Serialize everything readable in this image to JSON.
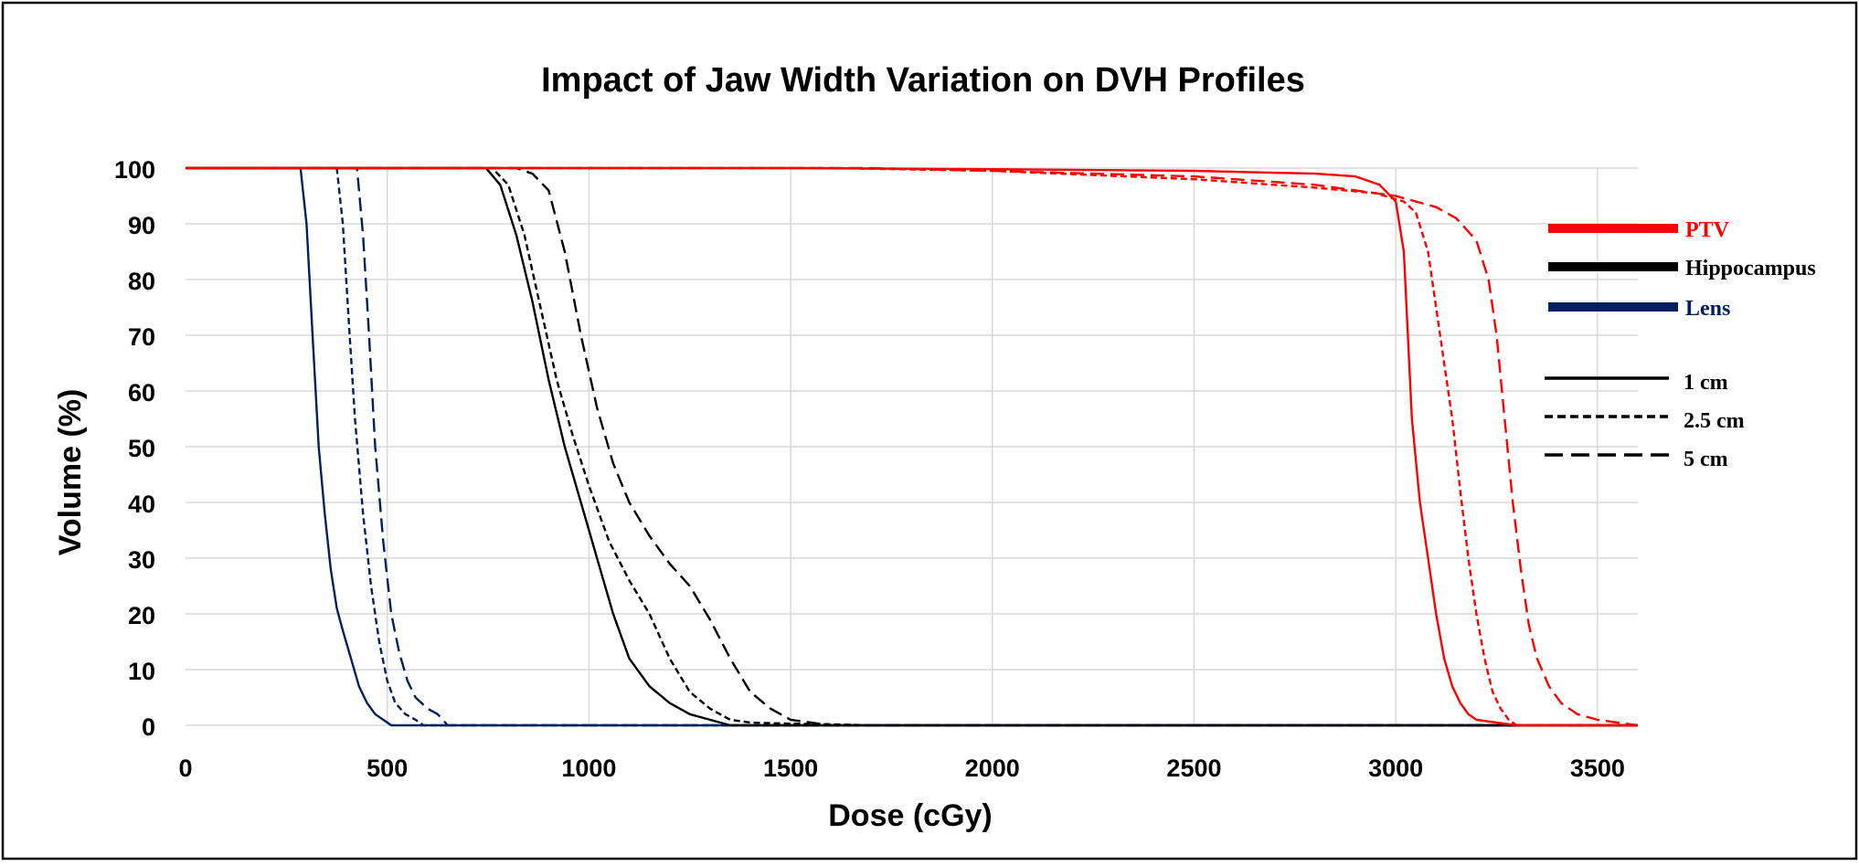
{
  "chart_data": {
    "type": "line",
    "title": "Impact of Jaw Width Variation on DVH Profiles",
    "xlabel": "Dose (cGy)",
    "ylabel": "Volume (%)",
    "xlim": [
      0,
      3600
    ],
    "ylim": [
      0,
      100
    ],
    "xticks": [
      "0",
      "500",
      "1000",
      "1500",
      "2000",
      "2500",
      "3000",
      "3500"
    ],
    "yticks": [
      "0",
      "10",
      "20",
      "30",
      "40",
      "50",
      "60",
      "70",
      "80",
      "90",
      "100"
    ],
    "grid": true,
    "legend": {
      "placement": "right",
      "structures": [
        {
          "label": "PTV",
          "color": "#ff0000"
        },
        {
          "label": "Hippocampus",
          "color": "#000000"
        },
        {
          "label": "Lens",
          "color": "#002060"
        }
      ],
      "widths": [
        {
          "label": "1 cm",
          "style": "solid"
        },
        {
          "label": "2.5 cm",
          "style": "short-dash"
        },
        {
          "label": "5 cm",
          "style": "long-dash"
        }
      ]
    },
    "series": [
      {
        "structure": "Lens",
        "width": "1 cm",
        "color": "#002060",
        "style": "solid",
        "points": [
          [
            0,
            100
          ],
          [
            285,
            100
          ],
          [
            300,
            90
          ],
          [
            315,
            70
          ],
          [
            330,
            50
          ],
          [
            345,
            38
          ],
          [
            360,
            28
          ],
          [
            375,
            21
          ],
          [
            390,
            17
          ],
          [
            410,
            12
          ],
          [
            430,
            7
          ],
          [
            450,
            4
          ],
          [
            470,
            2
          ],
          [
            490,
            1
          ],
          [
            510,
            0
          ],
          [
            3600,
            0
          ]
        ]
      },
      {
        "structure": "Lens",
        "width": "2.5 cm",
        "color": "#002060",
        "style": "short-dash",
        "points": [
          [
            0,
            100
          ],
          [
            375,
            100
          ],
          [
            390,
            90
          ],
          [
            405,
            72
          ],
          [
            420,
            55
          ],
          [
            440,
            38
          ],
          [
            460,
            25
          ],
          [
            480,
            15
          ],
          [
            500,
            8
          ],
          [
            520,
            4
          ],
          [
            545,
            2
          ],
          [
            570,
            1
          ],
          [
            590,
            0
          ],
          [
            3600,
            0
          ]
        ]
      },
      {
        "structure": "Lens",
        "width": "5 cm",
        "color": "#002060",
        "style": "long-dash",
        "points": [
          [
            0,
            100
          ],
          [
            425,
            100
          ],
          [
            440,
            88
          ],
          [
            455,
            70
          ],
          [
            470,
            50
          ],
          [
            490,
            33
          ],
          [
            510,
            20
          ],
          [
            530,
            13
          ],
          [
            550,
            8
          ],
          [
            570,
            5
          ],
          [
            600,
            3
          ],
          [
            625,
            2
          ],
          [
            650,
            0
          ],
          [
            3600,
            0
          ]
        ]
      },
      {
        "structure": "Hippocampus",
        "width": "1 cm",
        "color": "#000000",
        "style": "solid",
        "points": [
          [
            0,
            100
          ],
          [
            745,
            100
          ],
          [
            780,
            97
          ],
          [
            820,
            88
          ],
          [
            860,
            76
          ],
          [
            900,
            62
          ],
          [
            940,
            50
          ],
          [
            980,
            40
          ],
          [
            1020,
            30
          ],
          [
            1060,
            20
          ],
          [
            1100,
            12
          ],
          [
            1150,
            7
          ],
          [
            1200,
            4
          ],
          [
            1250,
            2
          ],
          [
            1300,
            1
          ],
          [
            1350,
            0
          ],
          [
            3600,
            0
          ]
        ]
      },
      {
        "structure": "Hippocampus",
        "width": "2.5 cm",
        "color": "#000000",
        "style": "short-dash",
        "points": [
          [
            0,
            100
          ],
          [
            760,
            100
          ],
          [
            800,
            97
          ],
          [
            840,
            88
          ],
          [
            880,
            75
          ],
          [
            920,
            62
          ],
          [
            960,
            52
          ],
          [
            1000,
            43
          ],
          [
            1050,
            33
          ],
          [
            1100,
            26
          ],
          [
            1150,
            20
          ],
          [
            1200,
            12
          ],
          [
            1250,
            6
          ],
          [
            1300,
            3
          ],
          [
            1350,
            1
          ],
          [
            1400,
            0.5
          ],
          [
            1500,
            0.3
          ],
          [
            1600,
            0.2
          ],
          [
            1700,
            0
          ],
          [
            3600,
            0
          ]
        ]
      },
      {
        "structure": "Hippocampus",
        "width": "5 cm",
        "color": "#000000",
        "style": "long-dash",
        "points": [
          [
            0,
            100
          ],
          [
            820,
            100
          ],
          [
            860,
            99
          ],
          [
            900,
            96
          ],
          [
            940,
            85
          ],
          [
            980,
            70
          ],
          [
            1020,
            57
          ],
          [
            1060,
            47
          ],
          [
            1100,
            40
          ],
          [
            1150,
            34
          ],
          [
            1200,
            29
          ],
          [
            1250,
            25
          ],
          [
            1300,
            19
          ],
          [
            1350,
            12
          ],
          [
            1400,
            6
          ],
          [
            1450,
            3
          ],
          [
            1500,
            1
          ],
          [
            1550,
            0.5
          ],
          [
            1600,
            0
          ],
          [
            3600,
            0
          ]
        ]
      },
      {
        "structure": "PTV",
        "width": "1 cm",
        "color": "#ff0000",
        "style": "solid",
        "points": [
          [
            0,
            100
          ],
          [
            1500,
            100
          ],
          [
            2000,
            99.8
          ],
          [
            2500,
            99.5
          ],
          [
            2800,
            99
          ],
          [
            2900,
            98.5
          ],
          [
            2960,
            97
          ],
          [
            3000,
            94
          ],
          [
            3020,
            85
          ],
          [
            3030,
            70
          ],
          [
            3040,
            55
          ],
          [
            3060,
            40
          ],
          [
            3080,
            30
          ],
          [
            3100,
            20
          ],
          [
            3120,
            12
          ],
          [
            3140,
            7
          ],
          [
            3160,
            4
          ],
          [
            3180,
            2
          ],
          [
            3200,
            1
          ],
          [
            3250,
            0.5
          ],
          [
            3300,
            0
          ],
          [
            3600,
            0
          ]
        ]
      },
      {
        "structure": "PTV",
        "width": "2.5 cm",
        "color": "#ff0000",
        "style": "short-dash",
        "points": [
          [
            0,
            100
          ],
          [
            1600,
            100
          ],
          [
            2000,
            99.5
          ],
          [
            2500,
            98
          ],
          [
            2800,
            96.5
          ],
          [
            2950,
            95.5
          ],
          [
            3020,
            94
          ],
          [
            3050,
            92
          ],
          [
            3080,
            85
          ],
          [
            3100,
            75
          ],
          [
            3120,
            65
          ],
          [
            3140,
            55
          ],
          [
            3160,
            42
          ],
          [
            3180,
            30
          ],
          [
            3200,
            20
          ],
          [
            3220,
            12
          ],
          [
            3240,
            6
          ],
          [
            3260,
            3
          ],
          [
            3280,
            1
          ],
          [
            3300,
            0
          ],
          [
            3600,
            0
          ]
        ]
      },
      {
        "structure": "PTV",
        "width": "5 cm",
        "color": "#ff0000",
        "style": "long-dash",
        "points": [
          [
            0,
            100
          ],
          [
            1700,
            100
          ],
          [
            2000,
            99.5
          ],
          [
            2500,
            98.5
          ],
          [
            2800,
            97
          ],
          [
            3000,
            95
          ],
          [
            3100,
            93
          ],
          [
            3150,
            91
          ],
          [
            3200,
            87
          ],
          [
            3230,
            80
          ],
          [
            3250,
            70
          ],
          [
            3270,
            55
          ],
          [
            3290,
            40
          ],
          [
            3310,
            28
          ],
          [
            3330,
            18
          ],
          [
            3350,
            12
          ],
          [
            3380,
            7
          ],
          [
            3410,
            4
          ],
          [
            3450,
            2
          ],
          [
            3500,
            1
          ],
          [
            3550,
            0.5
          ],
          [
            3600,
            0
          ]
        ]
      }
    ]
  }
}
